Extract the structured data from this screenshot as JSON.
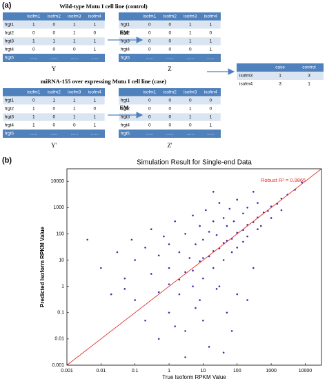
{
  "panel_a": {
    "label": "(a)",
    "groups": [
      {
        "title": "Wild-type Mutu I cell line (control)",
        "arrow_label": "EM",
        "tables": [
          {
            "name": "Y",
            "header": [
              "isofm1",
              "isofm2",
              "isofm3",
              "isofm4"
            ],
            "rows": [
              [
                "frgt1",
                1,
                0,
                1,
                1
              ],
              [
                "frgt2",
                0,
                0,
                1,
                0
              ],
              [
                "frgt3",
                1,
                1,
                1,
                1
              ],
              [
                "frgt4",
                0,
                0,
                0,
                1
              ]
            ],
            "last_row": [
              "frgt5",
              "......",
              "......",
              "......",
              "......"
            ]
          },
          {
            "name": "Z",
            "header": [
              "isofm1",
              "isofm2",
              "isofm3",
              "isofm4"
            ],
            "rows": [
              [
                "frgt1",
                0,
                0,
                1,
                1
              ],
              [
                "frgt2",
                0,
                0,
                1,
                0
              ],
              [
                "frgt3",
                0,
                0,
                1,
                1
              ],
              [
                "frgt4",
                0,
                0,
                0,
                1
              ]
            ],
            "last_row": [
              "frgt5",
              "......",
              "......",
              "......",
              "......"
            ]
          }
        ]
      },
      {
        "title": "miRNA-155 over expressing Mutu I cell line (case)",
        "arrow_label": "EM",
        "tables": [
          {
            "name": "Y'",
            "header": [
              "isofm1",
              "isofm2",
              "isofm3",
              "isofm4"
            ],
            "rows": [
              [
                "frgt1",
                0,
                1,
                1,
                1
              ],
              [
                "frgt2",
                1,
                0,
                1,
                0
              ],
              [
                "frgt3",
                1,
                0,
                1,
                1
              ],
              [
                "frgt4",
                1,
                0,
                0,
                1
              ]
            ],
            "last_row": [
              "frgt5",
              "......",
              "......",
              "......",
              "......"
            ]
          },
          {
            "name": "Z'",
            "header": [
              "isofm1",
              "isofm2",
              "isofm3",
              "isofm4"
            ],
            "rows": [
              [
                "frgt1",
                0,
                0,
                0,
                0
              ],
              [
                "frgt2",
                0,
                0,
                1,
                0
              ],
              [
                "frgt3",
                0,
                0,
                1,
                1
              ],
              [
                "frgt4",
                0,
                0,
                0,
                1
              ]
            ],
            "last_row": [
              "frgt5",
              "......",
              "......",
              "......",
              "......"
            ]
          }
        ]
      }
    ],
    "result": {
      "header": [
        "case",
        "control"
      ],
      "rows": [
        [
          "isofm3",
          1,
          3
        ],
        [
          "isofm4",
          3,
          1
        ]
      ]
    }
  },
  "panel_b_label": "(b)",
  "chart_data": {
    "type": "scatter",
    "title": "Simulation Result for Single-end Data",
    "xlabel": "True Isoform RPKM Value",
    "ylabel": "Predicted Isoform RPKM Value",
    "annotation": "Robust R² = 0.9865",
    "annotation_color": "#e0302a",
    "log_x": true,
    "log_y": true,
    "xlim": [
      0.001,
      30000
    ],
    "ylim": [
      0.001,
      30000
    ],
    "xticks": [
      0.001,
      0.01,
      0.1,
      1,
      10,
      100,
      1000,
      10000
    ],
    "yticks": [
      0.001,
      0.01,
      0.1,
      1,
      10,
      100,
      1000,
      10000
    ],
    "color": "#3b2fa6",
    "diagonal": {
      "x": [
        0.001,
        30000
      ],
      "y": [
        0.001,
        30000
      ],
      "color": "#e0302a"
    },
    "x": [
      0.5,
      1,
      2,
      3,
      5,
      8,
      10,
      15,
      20,
      30,
      40,
      50,
      70,
      100,
      150,
      200,
      300,
      400,
      600,
      800,
      1000,
      1500,
      2000,
      3000,
      5000,
      8000,
      0.01,
      0.02,
      0.03,
      0.05,
      0.08,
      0.1,
      0.1,
      0.2,
      0.3,
      0.3,
      0.5,
      0.7,
      1,
      1,
      1.5,
      2,
      3,
      4,
      5,
      6,
      8,
      10,
      12,
      15,
      20,
      25,
      30,
      40,
      50,
      60,
      80,
      100,
      150,
      200,
      300,
      400,
      0.05,
      0.2,
      0.5,
      1,
      2,
      3,
      5,
      8,
      10,
      15,
      20,
      30,
      40,
      50,
      70,
      100,
      100,
      150,
      200,
      300,
      400,
      500,
      1000,
      2000,
      3,
      10,
      40,
      70,
      200,
      6,
      1.5,
      25,
      0.004,
      20
    ],
    "y": [
      0.6,
      1.2,
      1.8,
      3.5,
      4,
      9,
      12,
      14,
      22,
      28,
      45,
      55,
      65,
      110,
      140,
      220,
      280,
      420,
      650,
      750,
      1100,
      1400,
      2200,
      3100,
      4800,
      9000,
      5,
      0.5,
      20,
      2,
      60,
      10,
      0.3,
      30,
      3,
      150,
      15,
      80,
      40,
      5,
      300,
      20,
      100,
      12,
      500,
      40,
      200,
      60,
      800,
      120,
      300,
      90,
      1500,
      400,
      200,
      900,
      300,
      2000,
      600,
      1000,
      4000,
      1500,
      0.8,
      0.05,
      0.01,
      0.1,
      0.5,
      0.02,
      1,
      0.3,
      2,
      0.005,
      5,
      1,
      10,
      0.1,
      20,
      30,
      0.5,
      50,
      80,
      5,
      150,
      200,
      400,
      800,
      0.002,
      0.05,
      0.003,
      0.02,
      0.3,
      0.15,
      0.03,
      0.8,
      60,
      4000
    ]
  }
}
